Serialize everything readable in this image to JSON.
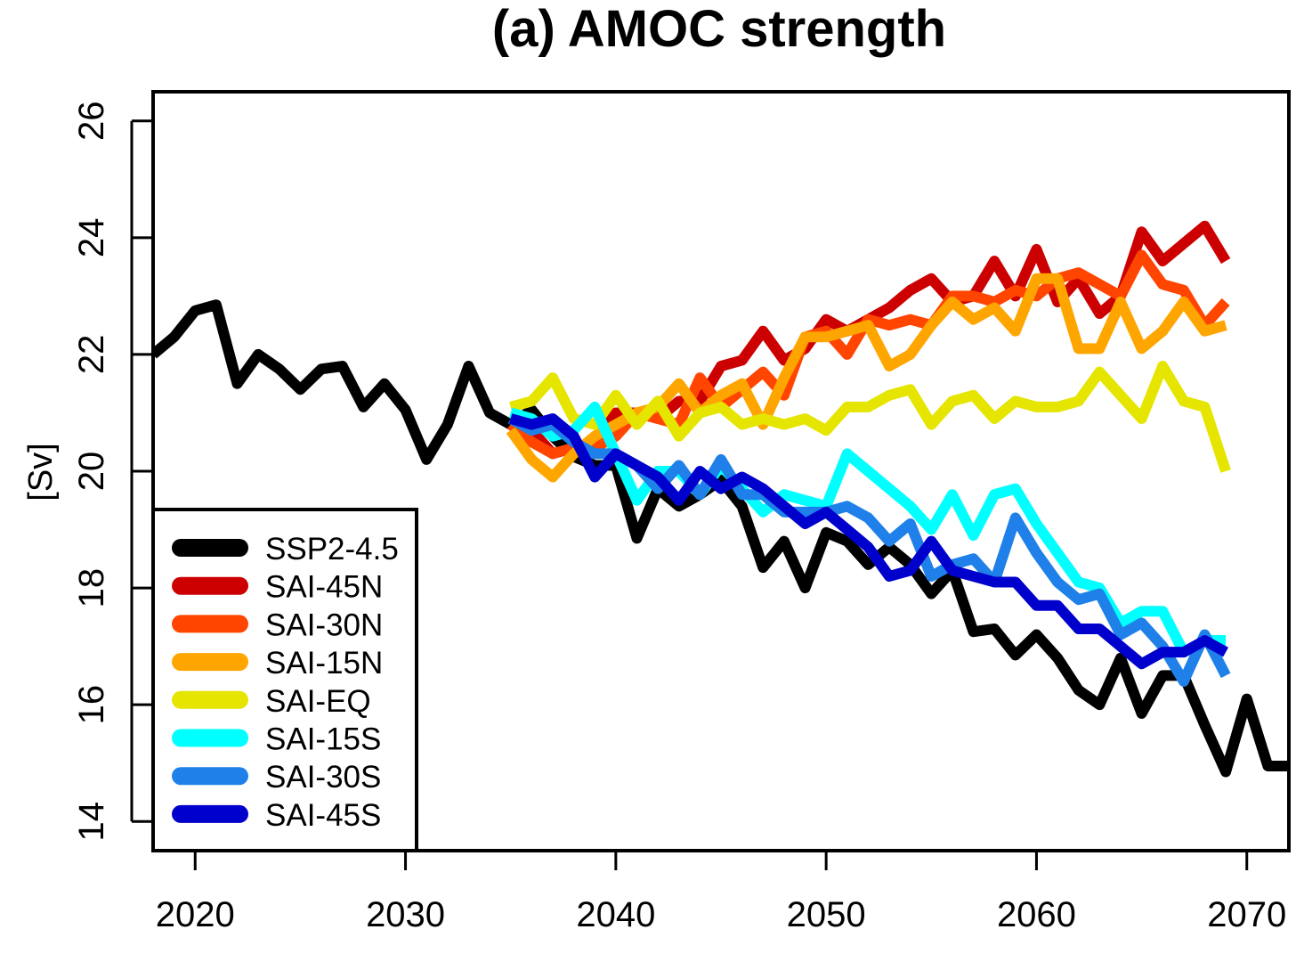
{
  "chart_data": {
    "type": "line",
    "title": "(a) AMOC strength",
    "xlabel": "",
    "ylabel": "[Sv]",
    "xlim": [
      2018,
      2072
    ],
    "ylim": [
      13.5,
      26.5
    ],
    "xticks": [
      2020,
      2030,
      2040,
      2050,
      2060,
      2070
    ],
    "yticks": [
      14,
      16,
      18,
      20,
      22,
      24,
      26
    ],
    "grid": false,
    "legend_position": "bottom-left",
    "series": [
      {
        "name": "SSP2-4.5",
        "color": "#000000",
        "x_start": 2018,
        "values": [
          22.0,
          22.3,
          22.75,
          22.85,
          21.5,
          22.0,
          21.75,
          21.4,
          21.75,
          21.8,
          21.1,
          21.5,
          21.05,
          20.2,
          20.8,
          21.8,
          21.0,
          20.8,
          21.05,
          20.6,
          20.25,
          20.1,
          20.1,
          18.85,
          19.7,
          19.4,
          19.6,
          19.85,
          19.4,
          18.35,
          18.8,
          18.0,
          18.95,
          18.8,
          18.4,
          18.7,
          18.4,
          17.9,
          18.3,
          17.25,
          17.3,
          16.85,
          17.2,
          16.8,
          16.25,
          16.0,
          16.8,
          15.85,
          16.5,
          16.5,
          15.65,
          14.85,
          16.1,
          14.95,
          14.95
        ]
      },
      {
        "name": "SAI-45N",
        "color": "#cc0000",
        "x_start": 2035,
        "values": [
          20.8,
          20.7,
          20.3,
          20.4,
          20.5,
          21.0,
          21.0,
          20.9,
          21.2,
          21.2,
          21.8,
          21.9,
          22.4,
          21.9,
          22.1,
          22.6,
          22.4,
          22.6,
          22.8,
          23.1,
          23.3,
          22.9,
          23.0,
          23.6,
          23.0,
          23.8,
          22.9,
          23.3,
          22.7,
          23.0,
          24.1,
          23.6,
          23.9,
          24.2,
          23.6
        ]
      },
      {
        "name": "SAI-30N",
        "color": "#ff4500",
        "x_start": 2035,
        "values": [
          20.8,
          20.5,
          20.3,
          20.4,
          20.4,
          20.6,
          21.0,
          20.9,
          20.8,
          21.6,
          21.1,
          21.4,
          21.7,
          21.3,
          22.3,
          22.4,
          22.0,
          22.6,
          22.5,
          22.6,
          22.5,
          23.0,
          23.0,
          22.9,
          23.1,
          23.0,
          23.3,
          23.4,
          23.2,
          23.0,
          23.7,
          23.2,
          23.1,
          22.5,
          22.9
        ]
      },
      {
        "name": "SAI-15N",
        "color": "#ffa500",
        "x_start": 2035,
        "values": [
          20.7,
          20.2,
          19.9,
          20.3,
          20.6,
          20.8,
          21.0,
          21.1,
          21.5,
          21.0,
          21.3,
          21.5,
          20.8,
          21.6,
          22.3,
          22.3,
          22.4,
          22.5,
          21.8,
          22.0,
          22.5,
          22.9,
          22.6,
          22.8,
          22.4,
          23.3,
          23.3,
          22.1,
          22.1,
          22.9,
          22.1,
          22.4,
          22.9,
          22.4,
          22.5
        ]
      },
      {
        "name": "SAI-EQ",
        "color": "#e5e500",
        "x_start": 2035,
        "values": [
          21.1,
          21.2,
          21.6,
          20.9,
          20.8,
          21.3,
          20.8,
          21.2,
          20.6,
          21.0,
          21.1,
          20.8,
          20.9,
          20.8,
          20.9,
          20.7,
          21.1,
          21.1,
          21.3,
          21.4,
          20.8,
          21.2,
          21.3,
          20.9,
          21.2,
          21.1,
          21.1,
          21.2,
          21.7,
          21.3,
          20.9,
          21.8,
          21.2,
          21.1,
          20.0
        ]
      },
      {
        "name": "SAI-15S",
        "color": "#00ffff",
        "x_start": 2035,
        "values": [
          21.0,
          20.9,
          20.6,
          20.7,
          21.1,
          20.3,
          19.5,
          20.0,
          20.0,
          19.6,
          20.1,
          19.7,
          19.3,
          19.6,
          19.5,
          19.4,
          20.3,
          20.0,
          19.7,
          19.4,
          19.0,
          19.6,
          18.9,
          19.6,
          19.7,
          19.1,
          18.6,
          18.1,
          18.0,
          17.4,
          17.6,
          17.6,
          16.9,
          17.1,
          17.1
        ]
      },
      {
        "name": "SAI-30S",
        "color": "#1e80e8",
        "x_start": 2035,
        "values": [
          20.9,
          20.7,
          20.8,
          20.5,
          20.3,
          20.3,
          20.1,
          19.7,
          20.1,
          19.6,
          20.2,
          19.6,
          19.6,
          19.3,
          19.3,
          19.3,
          19.4,
          19.2,
          18.8,
          19.1,
          18.2,
          18.4,
          18.5,
          18.1,
          19.2,
          18.6,
          18.1,
          17.8,
          17.9,
          17.2,
          17.4,
          17.0,
          16.4,
          17.2,
          16.5
        ]
      },
      {
        "name": "SAI-45S",
        "color": "#0000cc",
        "x_start": 2035,
        "values": [
          20.9,
          20.8,
          20.9,
          20.6,
          19.9,
          20.3,
          20.1,
          19.9,
          19.5,
          20.0,
          19.7,
          19.9,
          19.7,
          19.4,
          19.1,
          19.3,
          19.0,
          18.7,
          18.2,
          18.3,
          18.8,
          18.3,
          18.2,
          18.1,
          18.1,
          17.7,
          17.7,
          17.3,
          17.3,
          17.0,
          16.7,
          16.9,
          16.9,
          17.1,
          16.9
        ]
      }
    ]
  }
}
